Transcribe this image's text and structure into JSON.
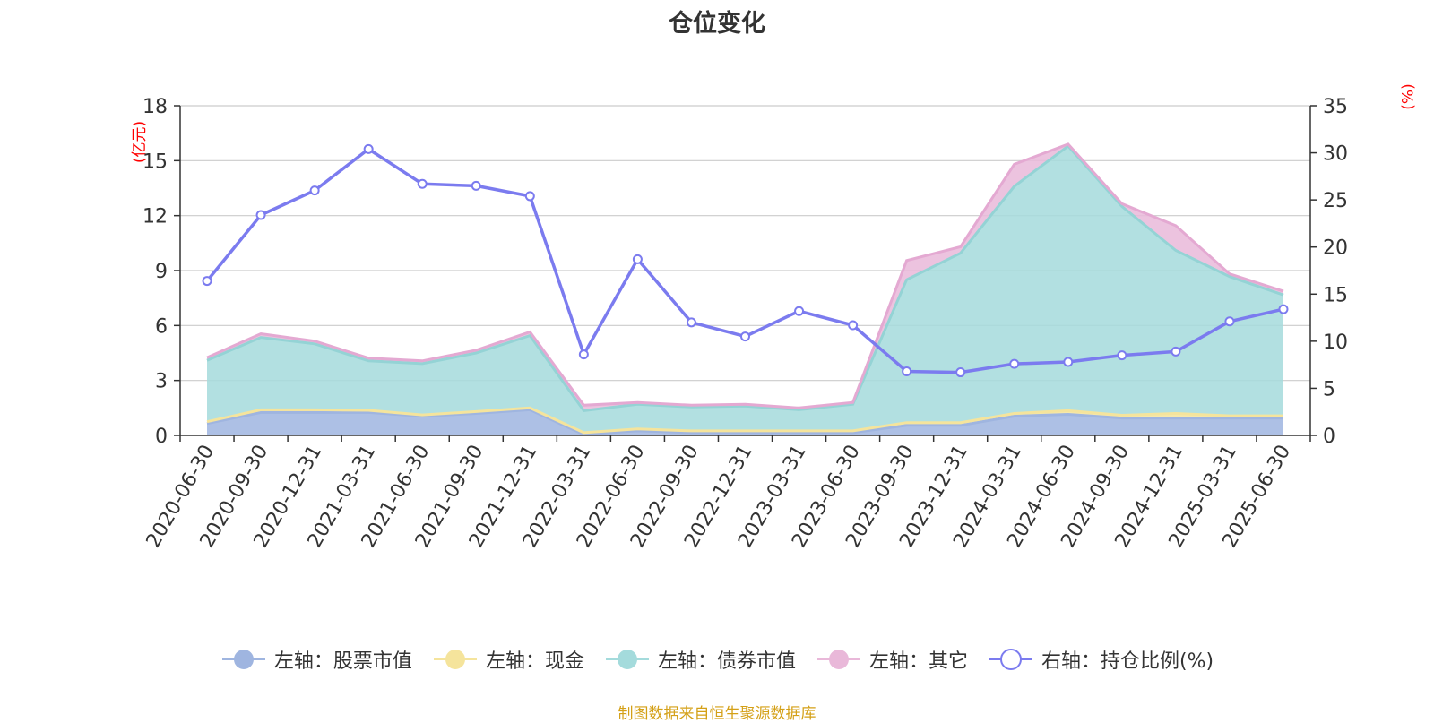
{
  "title": "仓位变化",
  "left_unit": "(亿元)",
  "right_unit": "(%)",
  "source": "制图数据来自恒生聚源数据库",
  "colors": {
    "stock": "#9fb5e0",
    "cash": "#f5e49c",
    "bond": "#a4dbdc",
    "other": "#e9b8d9",
    "ratio": "#7b7bef",
    "stock_line": "#9fb5e0",
    "cash_line": "#f5e49c",
    "bond_line": "#94d3d5",
    "other_line": "#e4a9d2"
  },
  "legend": [
    {
      "key": "stock",
      "label": "左轴：股票市值",
      "type": "area"
    },
    {
      "key": "cash",
      "label": "左轴：现金",
      "type": "area"
    },
    {
      "key": "bond",
      "label": "左轴：债券市值",
      "type": "area"
    },
    {
      "key": "other",
      "label": "左轴：其它",
      "type": "area"
    },
    {
      "key": "ratio",
      "label": "右轴：持仓比例(%)",
      "type": "line"
    }
  ],
  "chart_data": {
    "type": "area",
    "categories": [
      "2020-06-30",
      "2020-09-30",
      "2020-12-31",
      "2021-03-31",
      "2021-06-30",
      "2021-09-30",
      "2021-12-31",
      "2022-03-31",
      "2022-06-30",
      "2022-09-30",
      "2022-12-31",
      "2023-03-31",
      "2023-06-30",
      "2023-09-30",
      "2023-12-31",
      "2024-03-31",
      "2024-06-30",
      "2024-09-30",
      "2024-12-31",
      "2025-03-31",
      "2025-06-30"
    ],
    "y_left": {
      "ticks": [
        0,
        3,
        6,
        9,
        12,
        15,
        18
      ],
      "ylim": [
        0,
        18
      ]
    },
    "y_right": {
      "ticks": [
        0,
        5,
        10,
        15,
        20,
        25,
        30,
        35
      ],
      "ylim": [
        0,
        35
      ]
    },
    "grid": true,
    "legend_position": "bottom",
    "stacked_series": [
      {
        "name": "左轴：股票市值",
        "key": "stock",
        "values": [
          0.65,
          1.25,
          1.25,
          1.25,
          1.05,
          1.2,
          1.4,
          0.05,
          0.25,
          0.15,
          0.15,
          0.15,
          0.15,
          0.55,
          0.55,
          1.05,
          1.15,
          0.95,
          0.95,
          0.95,
          0.95
        ]
      },
      {
        "name": "左轴：现金",
        "key": "cash",
        "values": [
          0.1,
          0.15,
          0.15,
          0.12,
          0.07,
          0.1,
          0.1,
          0.1,
          0.1,
          0.1,
          0.1,
          0.1,
          0.1,
          0.15,
          0.15,
          0.15,
          0.2,
          0.15,
          0.25,
          0.12,
          0.12
        ]
      },
      {
        "name": "左轴：债券市值",
        "key": "bond",
        "values": [
          3.35,
          3.95,
          3.6,
          2.7,
          2.8,
          3.2,
          3.95,
          1.2,
          1.35,
          1.3,
          1.35,
          1.15,
          1.45,
          7.8,
          9.25,
          12.4,
          14.45,
          11.4,
          8.9,
          7.6,
          6.6
        ]
      },
      {
        "name": "左轴：其它",
        "key": "other",
        "values": [
          0.15,
          0.2,
          0.15,
          0.15,
          0.15,
          0.15,
          0.2,
          0.3,
          0.1,
          0.1,
          0.1,
          0.1,
          0.1,
          1.05,
          0.35,
          1.2,
          0.1,
          0.15,
          1.35,
          0.15,
          0.2
        ]
      }
    ],
    "line_series": [
      {
        "name": "右轴：持仓比例(%)",
        "key": "ratio",
        "axis": "right",
        "values": [
          16.4,
          23.4,
          26.0,
          30.4,
          26.7,
          26.5,
          25.4,
          8.6,
          18.7,
          12.0,
          10.5,
          13.2,
          11.7,
          6.8,
          6.7,
          7.6,
          7.8,
          8.5,
          8.9,
          12.1,
          13.4
        ]
      }
    ]
  }
}
